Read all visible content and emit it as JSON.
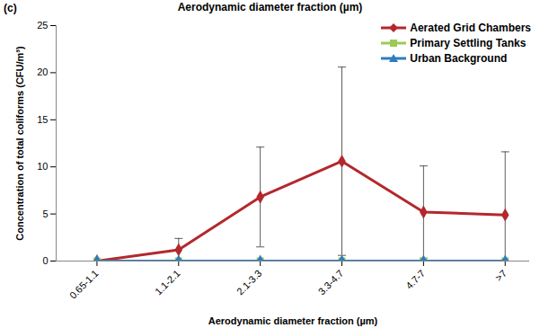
{
  "chart_data": {
    "type": "line",
    "title": "Aerodynamic diameter fraction (µm)",
    "panel_label": "(c)",
    "x_label": "Aerodynamic diameter fraction (µm)",
    "y_label": "Concentration of total coliforms (CFU/m³)",
    "categories": [
      "0.65-1.1",
      "1.1-2.1",
      "2.1-3.3",
      "3.3-4.7",
      "4.7-7",
      ">7"
    ],
    "series": [
      {
        "name": "Aerated Grid Chambers",
        "color": "#b3282d",
        "marker": "diamond",
        "values": [
          0,
          1.2,
          6.8,
          10.6,
          5.2,
          4.9
        ],
        "errors": [
          0,
          1.2,
          5.3,
          10,
          4.9,
          6.7
        ]
      },
      {
        "name": "Primary Settling Tanks",
        "color": "#9bcb55",
        "marker": "square",
        "values": [
          0,
          0,
          0,
          0,
          0,
          0
        ]
      },
      {
        "name": "Urban Background",
        "color": "#2e7cc0",
        "marker": "triangle",
        "values": [
          0,
          0,
          0,
          0,
          0,
          0
        ]
      }
    ],
    "ylim": [
      0,
      25
    ],
    "yticks": [
      0,
      5,
      10,
      15,
      20,
      25
    ],
    "grid": false,
    "legend": "top-right"
  }
}
